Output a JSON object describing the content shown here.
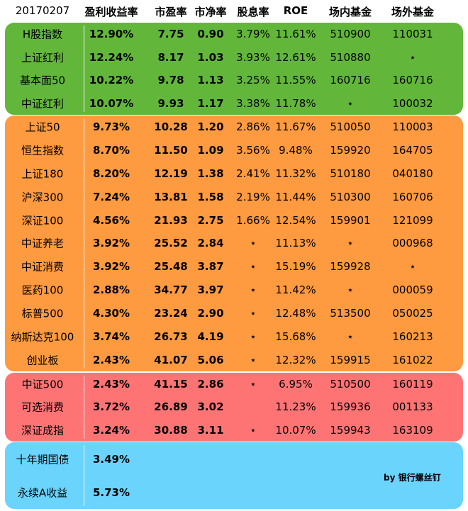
{
  "headers": [
    "20170207",
    "盈利收益率",
    "市盈率",
    "市净率",
    "股息率",
    "ROE",
    "场内基金",
    "场外基金"
  ],
  "groups": [
    {
      "color": "#62b73a",
      "rows": [
        [
          "H股指数",
          "12.90%",
          "7.75",
          "0.90",
          "3.79%",
          "11.61%",
          "510900",
          "110031"
        ],
        [
          "上证红利",
          "12.24%",
          "8.17",
          "1.03",
          "3.93%",
          "12.61%",
          "510880",
          "⋆"
        ],
        [
          "基本面50",
          "10.22%",
          "9.78",
          "1.13",
          "3.25%",
          "11.55%",
          "160716",
          "160716"
        ],
        [
          "中证红利",
          "10.07%",
          "9.93",
          "1.17",
          "3.38%",
          "11.78%",
          "⋆",
          "100032"
        ]
      ]
    },
    {
      "color": "#fe9a3f",
      "rows": [
        [
          "上证50",
          "9.73%",
          "10.28",
          "1.20",
          "2.86%",
          "11.67%",
          "510050",
          "110003"
        ],
        [
          "恒生指数",
          "8.70%",
          "11.50",
          "1.09",
          "3.56%",
          "9.48%",
          "159920",
          "164705"
        ],
        [
          "上证180",
          "8.20%",
          "12.19",
          "1.38",
          "2.41%",
          "11.32%",
          "510180",
          "040180"
        ],
        [
          "沪深300",
          "7.24%",
          "13.81",
          "1.58",
          "2.19%",
          "11.44%",
          "510300",
          "160706"
        ],
        [
          "深证100",
          "4.56%",
          "21.93",
          "2.75",
          "1.66%",
          "12.54%",
          "159901",
          "121099"
        ],
        [
          "中证养老",
          "3.92%",
          "25.52",
          "2.84",
          "⋆",
          "11.13%",
          "⋆",
          "000968"
        ],
        [
          "中证消费",
          "3.92%",
          "25.48",
          "3.87",
          "⋆",
          "15.19%",
          "159928",
          "⋆"
        ],
        [
          "医药100",
          "2.88%",
          "34.77",
          "3.97",
          "⋆",
          "11.42%",
          "⋆",
          "000059"
        ],
        [
          "标普500",
          "4.30%",
          "23.24",
          "2.90",
          "⋆",
          "12.48%",
          "513500",
          "050025"
        ],
        [
          "纳斯达克100",
          "3.74%",
          "26.73",
          "4.19",
          "⋆",
          "15.68%",
          "⋆",
          "160213"
        ],
        [
          "创业板",
          "2.43%",
          "41.07",
          "5.06",
          "⋆",
          "12.32%",
          "159915",
          "161022"
        ]
      ]
    },
    {
      "color": "#fe7474",
      "rows": [
        [
          "中证500",
          "2.43%",
          "41.15",
          "2.86",
          "⋆",
          "6.95%",
          "510500",
          "160119"
        ],
        [
          "可选消费",
          "3.72%",
          "26.89",
          "3.02",
          "",
          "11.23%",
          "159936",
          "001133"
        ],
        [
          "深证成指",
          "3.24%",
          "30.88",
          "3.11",
          "⋆",
          "10.07%",
          "159943",
          "163109"
        ]
      ]
    },
    {
      "color": "#6ad4fd",
      "rows": [
        [
          "十年期国债",
          "3.49%",
          "",
          "",
          "",
          "",
          "",
          ""
        ],
        [
          "永续A收益",
          "5.73%",
          "",
          "",
          "",
          "",
          "",
          ""
        ]
      ]
    }
  ],
  "signature": "by 银行螺丝钉"
}
